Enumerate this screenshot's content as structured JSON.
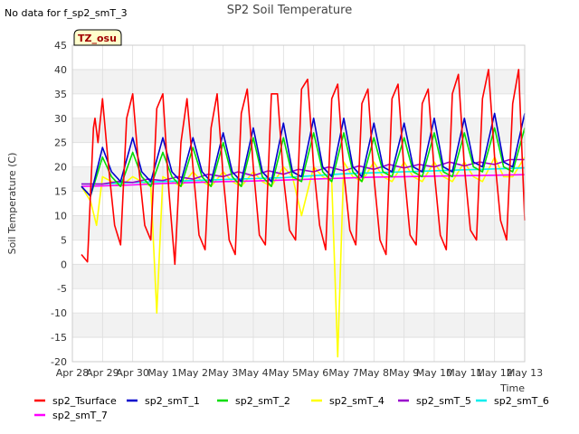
{
  "chart_data": {
    "type": "line",
    "title": "SP2 Soil Temperature",
    "note": "No data for f_sp2_smT_3",
    "tz_label": "TZ_osu",
    "xlabel": "Time",
    "ylabel": "Soil Temperature (C)",
    "ylim": [
      -20,
      45
    ],
    "xlim": [
      0,
      15
    ],
    "y_ticks": [
      -20,
      -15,
      -10,
      -5,
      0,
      5,
      10,
      15,
      20,
      25,
      30,
      35,
      40,
      45
    ],
    "x_tick_positions": [
      0,
      1,
      2,
      3,
      4,
      5,
      6,
      7,
      8,
      9,
      10,
      11,
      12,
      13,
      14,
      15
    ],
    "x_tick_labels": [
      "Apr 28",
      "Apr 29",
      "Apr 30",
      "May 1",
      "May 2",
      "May 3",
      "May 4",
      "May 5",
      "May 6",
      "May 7",
      "May 8",
      "May 9",
      "May 10",
      "May 11",
      "May 12",
      "May 13"
    ],
    "grid": true,
    "legend_position": "bottom",
    "series": [
      {
        "name": "sp2_Tsurface",
        "color": "#ff0000",
        "x": [
          0.3,
          0.5,
          0.7,
          0.75,
          0.85,
          1.0,
          1.2,
          1.4,
          1.6,
          1.8,
          2.0,
          2.2,
          2.4,
          2.6,
          2.8,
          3.0,
          3.2,
          3.4,
          3.6,
          3.8,
          4.0,
          4.2,
          4.4,
          4.6,
          4.8,
          5.0,
          5.2,
          5.4,
          5.6,
          5.8,
          6.0,
          6.2,
          6.4,
          6.6,
          6.8,
          7.0,
          7.2,
          7.4,
          7.6,
          7.8,
          8.0,
          8.2,
          8.4,
          8.6,
          8.8,
          9.0,
          9.2,
          9.4,
          9.6,
          9.8,
          10.0,
          10.2,
          10.4,
          10.6,
          10.8,
          11.0,
          11.2,
          11.4,
          11.6,
          11.8,
          12.0,
          12.2,
          12.4,
          12.6,
          12.8,
          13.0,
          13.2,
          13.4,
          13.6,
          13.8,
          14.0,
          14.2,
          14.4,
          14.6,
          14.8,
          15.0
        ],
        "y": [
          2,
          0.5,
          28,
          30,
          25,
          34,
          20,
          8,
          4,
          30,
          35,
          20,
          8,
          5,
          32,
          35,
          15,
          0,
          25,
          34,
          20,
          6,
          3,
          28,
          35,
          18,
          5,
          2,
          31,
          36,
          20,
          6,
          4,
          35,
          35,
          18,
          7,
          5,
          36,
          38,
          20,
          8,
          3,
          34,
          37,
          19,
          7,
          4,
          33,
          36,
          18,
          5,
          2,
          34,
          37,
          19,
          6,
          4,
          33,
          36,
          19,
          6,
          3,
          35,
          39,
          20,
          7,
          5,
          34,
          40,
          22,
          9,
          5,
          33,
          40,
          9
        ]
      },
      {
        "name": "sp2_smT_1",
        "color": "#0000cc",
        "x": [
          0.3,
          0.6,
          1.0,
          1.3,
          1.6,
          2.0,
          2.3,
          2.6,
          3.0,
          3.3,
          3.6,
          4.0,
          4.3,
          4.6,
          5.0,
          5.3,
          5.6,
          6.0,
          6.3,
          6.6,
          7.0,
          7.3,
          7.6,
          8.0,
          8.3,
          8.6,
          9.0,
          9.3,
          9.6,
          10.0,
          10.3,
          10.6,
          11.0,
          11.3,
          11.6,
          12.0,
          12.3,
          12.6,
          13.0,
          13.3,
          13.6,
          14.0,
          14.3,
          14.6,
          15.0
        ],
        "y": [
          16,
          14,
          24,
          19,
          17,
          26,
          19,
          17,
          26,
          19,
          17,
          26,
          19,
          17,
          27,
          19,
          17,
          28,
          19,
          17,
          29,
          19,
          18,
          30,
          20,
          18,
          30,
          20,
          18,
          29,
          20,
          19,
          29,
          20,
          19,
          30,
          20,
          19,
          30,
          21,
          20,
          31,
          21,
          20,
          31
        ]
      },
      {
        "name": "sp2_smT_2",
        "color": "#00dd00",
        "x": [
          0.3,
          0.6,
          1.0,
          1.3,
          1.6,
          2.0,
          2.3,
          2.6,
          3.0,
          3.3,
          3.6,
          4.0,
          4.3,
          4.6,
          5.0,
          5.3,
          5.6,
          6.0,
          6.3,
          6.6,
          7.0,
          7.3,
          7.6,
          8.0,
          8.3,
          8.6,
          9.0,
          9.3,
          9.6,
          10.0,
          10.3,
          10.6,
          11.0,
          11.3,
          11.6,
          12.0,
          12.3,
          12.6,
          13.0,
          13.3,
          13.6,
          14.0,
          14.3,
          14.6,
          15.0
        ],
        "y": [
          16,
          14,
          22,
          18,
          16,
          23,
          18,
          16,
          23,
          18,
          16,
          24,
          18,
          16,
          25,
          18,
          16,
          26,
          18,
          16,
          26,
          18,
          17,
          27,
          19,
          17,
          27,
          19,
          17,
          26,
          19,
          18,
          26,
          19,
          18,
          27,
          19,
          18,
          27,
          20,
          19,
          28,
          20,
          19,
          28
        ]
      },
      {
        "name": "sp2_smT_4",
        "color": "#ffff00",
        "x": [
          0.3,
          0.6,
          0.8,
          1.0,
          1.3,
          1.6,
          2.0,
          2.3,
          2.6,
          2.8,
          3.0,
          3.3,
          3.6,
          4.0,
          4.3,
          4.6,
          5.0,
          5.3,
          5.6,
          6.0,
          6.3,
          6.6,
          7.0,
          7.3,
          7.6,
          8.0,
          8.3,
          8.6,
          8.8,
          9.0,
          9.3,
          9.6,
          10.0,
          10.3,
          10.6,
          11.0,
          11.3,
          11.6,
          12.0,
          12.3,
          12.6,
          13.0,
          13.3,
          13.6,
          14.0,
          14.3,
          14.6,
          15.0
        ],
        "y": [
          16,
          13,
          8,
          18,
          17,
          16,
          18,
          17,
          16,
          -10,
          18,
          17,
          16,
          19,
          17,
          16,
          19,
          17,
          16,
          19,
          17,
          16,
          20,
          18,
          10,
          20,
          18,
          17,
          -19,
          21,
          18,
          17,
          21,
          18,
          17,
          21,
          18,
          17,
          21,
          18,
          17,
          21,
          18,
          17,
          22,
          18,
          18,
          22
        ]
      },
      {
        "name": "sp2_smT_5",
        "color": "#9900cc",
        "x": [
          0.3,
          1.0,
          1.5,
          2.0,
          2.5,
          3.0,
          3.5,
          4.0,
          4.5,
          5.0,
          5.5,
          6.0,
          6.5,
          7.0,
          7.5,
          8.0,
          8.5,
          9.0,
          9.5,
          10.0,
          10.5,
          11.0,
          11.5,
          12.0,
          12.5,
          13.0,
          13.5,
          14.0,
          14.5,
          15.0
        ],
        "y": [
          16.5,
          16.5,
          17,
          16.8,
          17.5,
          17.2,
          18,
          17.5,
          18.5,
          18,
          19,
          18.2,
          19.2,
          18.5,
          19.5,
          19,
          20,
          19.2,
          20.2,
          19.5,
          20.5,
          19.8,
          20.5,
          20,
          21,
          20.2,
          21,
          20.5,
          21.5,
          21.5
        ]
      },
      {
        "name": "sp2_smT_6",
        "color": "#00eeee",
        "x": [
          0.3,
          1.0,
          2.0,
          3.0,
          4.0,
          5.0,
          6.0,
          7.0,
          8.0,
          9.0,
          10.0,
          11.0,
          12.0,
          13.0,
          14.0,
          15.0
        ],
        "y": [
          16.5,
          16.5,
          16.8,
          17,
          17.2,
          17.4,
          17.6,
          17.8,
          18.2,
          18.6,
          18.8,
          19,
          19.2,
          19.4,
          19.6,
          19.8
        ]
      },
      {
        "name": "sp2_smT_7",
        "color": "#ff00ff",
        "x": [
          0.3,
          1.0,
          2.0,
          3.0,
          4.0,
          5.0,
          6.0,
          7.0,
          8.0,
          9.0,
          10.0,
          11.0,
          12.0,
          13.0,
          14.0,
          15.0
        ],
        "y": [
          16,
          16.1,
          16.3,
          16.6,
          16.8,
          17,
          17.1,
          17.3,
          17.5,
          17.7,
          17.9,
          18,
          18.1,
          18.2,
          18.3,
          18.4
        ]
      }
    ]
  }
}
